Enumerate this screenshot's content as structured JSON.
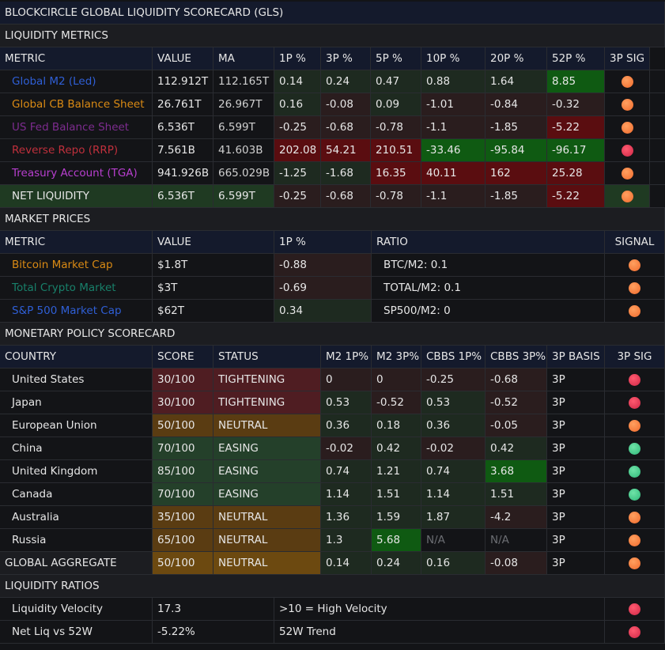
{
  "title": "BLOCKCIRCLE GLOBAL LIQUIDITY SCORECARD (GLS)",
  "colors": {
    "m2": "#2f5fd6",
    "cb": "#d98a14",
    "fed": "#7d2c8f",
    "rrp": "#c0303c",
    "tga": "#b83fcf",
    "crypto": "#18806a",
    "sp500": "#2f5fd6"
  },
  "liquidity_metrics": {
    "section": "LIQUIDITY METRICS",
    "headers": [
      "METRIC",
      "VALUE",
      "MA",
      "1P %",
      "3P %",
      "5P %",
      "10P %",
      "20P %",
      "52P %",
      "3P SIG"
    ],
    "rows": [
      {
        "metric": "Global M2 (Led)",
        "color": "#2f5fd6",
        "value": "112.912T",
        "ma": "112.165T",
        "pct": [
          "0.14",
          "0.24",
          "0.47",
          "0.88",
          "1.64",
          "8.85"
        ],
        "tones": [
          "green",
          "green",
          "green",
          "green",
          "green",
          "sgreen"
        ],
        "signal": "orange"
      },
      {
        "metric": "Global CB Balance Sheet",
        "color": "#d98a14",
        "value": "26.761T",
        "ma": "26.967T",
        "pct": [
          "0.16",
          "-0.08",
          "0.09",
          "-1.01",
          "-0.84",
          "-0.32"
        ],
        "tones": [
          "green",
          "red",
          "green",
          "red",
          "red",
          "red"
        ],
        "signal": "orange"
      },
      {
        "metric": "US Fed Balance Sheet",
        "color": "#7d2c8f",
        "value": "6.536T",
        "ma": "6.599T",
        "pct": [
          "-0.25",
          "-0.68",
          "-0.78",
          "-1.1",
          "-1.85",
          "-5.22"
        ],
        "tones": [
          "red",
          "red",
          "red",
          "red",
          "red",
          "sred"
        ],
        "signal": "orange"
      },
      {
        "metric": "Reverse Repo (RRP)",
        "color": "#c0303c",
        "value": "7.561B",
        "ma": "41.603B",
        "pct": [
          "202.08",
          "54.21",
          "210.51",
          "-33.46",
          "-95.84",
          "-96.17"
        ],
        "tones": [
          "sred",
          "sred",
          "sred",
          "sgreen",
          "sgreen",
          "sgreen"
        ],
        "signal": "red"
      },
      {
        "metric": "Treasury Account (TGA)",
        "color": "#b83fcf",
        "value": "941.926B",
        "ma": "665.029B",
        "pct": [
          "-1.25",
          "-1.68",
          "16.35",
          "40.11",
          "162",
          "25.28"
        ],
        "tones": [
          "green",
          "green",
          "sred",
          "sred",
          "sred",
          "sred"
        ],
        "signal": "orange"
      },
      {
        "metric": "NET LIQUIDITY",
        "color": "#e6e6e6",
        "net": true,
        "value": "6.536T",
        "ma": "6.599T",
        "pct": [
          "-0.25",
          "-0.68",
          "-0.78",
          "-1.1",
          "-1.85",
          "-5.22"
        ],
        "tones": [
          "red",
          "red",
          "red",
          "red",
          "red",
          "sred"
        ],
        "signal": "orange"
      }
    ]
  },
  "market_prices": {
    "section": "MARKET PRICES",
    "headers": [
      "METRIC",
      "VALUE",
      "1P %",
      "RATIO",
      "SIGNAL"
    ],
    "rows": [
      {
        "metric": "Bitcoin Market Cap",
        "color": "#d98a14",
        "value": "$1.8T",
        "pct": "-0.88",
        "tone": "red",
        "ratio": "BTC/M2: 0.1",
        "signal": "orange"
      },
      {
        "metric": "Total Crypto Market",
        "color": "#18806a",
        "value": "$3T",
        "pct": "-0.69",
        "tone": "red",
        "ratio": "TOTAL/M2: 0.1",
        "signal": "orange"
      },
      {
        "metric": "S&P 500 Market Cap",
        "color": "#2f5fd6",
        "value": "$62T",
        "pct": "0.34",
        "tone": "green",
        "ratio": "SP500/M2: 0",
        "signal": "orange"
      }
    ]
  },
  "scorecard": {
    "section": "MONETARY POLICY SCORECARD",
    "headers": [
      "COUNTRY",
      "SCORE",
      "STATUS",
      "M2 1P%",
      "M2 3P%",
      "CBBS 1P%",
      "CBBS 3P%",
      "3P BASIS",
      "3P SIG"
    ],
    "rows": [
      {
        "country": "United States",
        "score": "30/100",
        "status": "TIGHTENING",
        "stone": "tight",
        "vals": [
          "0",
          "0",
          "-0.25",
          "-0.68"
        ],
        "tones": [
          "red",
          "red",
          "red",
          "red"
        ],
        "basis": "3P",
        "signal": "red"
      },
      {
        "country": "Japan",
        "score": "30/100",
        "status": "TIGHTENING",
        "stone": "tight",
        "vals": [
          "0.53",
          "-0.52",
          "0.53",
          "-0.52"
        ],
        "tones": [
          "green",
          "red",
          "green",
          "red"
        ],
        "basis": "3P",
        "signal": "red"
      },
      {
        "country": "European Union",
        "score": "50/100",
        "status": "NEUTRAL",
        "stone": "neutral",
        "vals": [
          "0.36",
          "0.18",
          "0.36",
          "-0.05"
        ],
        "tones": [
          "green",
          "green",
          "green",
          "red"
        ],
        "basis": "3P",
        "signal": "orange"
      },
      {
        "country": "China",
        "score": "70/100",
        "status": "EASING",
        "stone": "easing",
        "vals": [
          "-0.02",
          "0.42",
          "-0.02",
          "0.42"
        ],
        "tones": [
          "red",
          "green",
          "red",
          "green"
        ],
        "basis": "3P",
        "signal": "green"
      },
      {
        "country": "United Kingdom",
        "score": "85/100",
        "status": "EASING",
        "stone": "easing",
        "vals": [
          "0.74",
          "1.21",
          "0.74",
          "3.68"
        ],
        "tones": [
          "green",
          "green",
          "green",
          "sgreen2"
        ],
        "basis": "3P",
        "signal": "green"
      },
      {
        "country": "Canada",
        "score": "70/100",
        "status": "EASING",
        "stone": "easing",
        "vals": [
          "1.14",
          "1.51",
          "1.14",
          "1.51"
        ],
        "tones": [
          "green",
          "green",
          "green",
          "green"
        ],
        "basis": "3P",
        "signal": "green"
      },
      {
        "country": "Australia",
        "score": "35/100",
        "status": "NEUTRAL",
        "stone": "neutral",
        "vals": [
          "1.36",
          "1.59",
          "1.87",
          "-4.2"
        ],
        "tones": [
          "green",
          "green",
          "green",
          "sred2"
        ],
        "basis": "3P",
        "signal": "orange"
      },
      {
        "country": "Russia",
        "score": "65/100",
        "status": "NEUTRAL",
        "stone": "neutral",
        "vals": [
          "1.3",
          "5.68",
          "N/A",
          "N/A"
        ],
        "tones": [
          "green",
          "sgreen",
          "na",
          "na"
        ],
        "basis": "3P",
        "signal": "orange"
      },
      {
        "country": "GLOBAL AGGREGATE",
        "agg": true,
        "score": "50/100",
        "status": "NEUTRAL",
        "stone": "agg",
        "vals": [
          "0.14",
          "0.24",
          "0.16",
          "-0.08"
        ],
        "tones": [
          "green",
          "green",
          "green",
          "red"
        ],
        "basis": "3P",
        "signal": "orange"
      }
    ]
  },
  "ratios": {
    "section": "LIQUIDITY RATIOS",
    "rows": [
      {
        "label": "Liquidity Velocity",
        "value": "17.3",
        "desc": ">10 = High Velocity",
        "signal": "red"
      },
      {
        "label": "Net Liq vs 52W",
        "value": "-5.22%",
        "desc": "52W Trend",
        "signal": "red"
      }
    ]
  }
}
